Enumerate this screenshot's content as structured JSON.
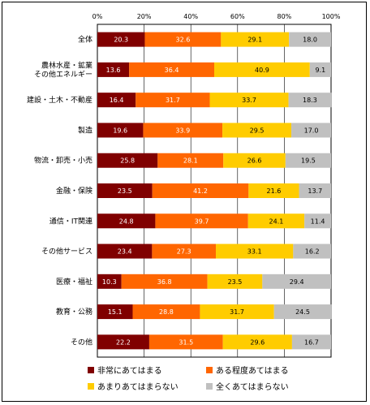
{
  "chart_data": {
    "type": "bar",
    "orientation": "horizontal",
    "stacked": true,
    "percent": true,
    "xlim": [
      0,
      100
    ],
    "xticks": [
      "0%",
      "20%",
      "40%",
      "60%",
      "80%",
      "100%"
    ],
    "categories": [
      "全体",
      "農林水産・鉱業\nその他エネルギー",
      "建設・土木・不動産",
      "製造",
      "物流・卸売・小売",
      "金融・保険",
      "通信・IT関連",
      "その他サービス",
      "医療・福祉",
      "教育・公務",
      "その他"
    ],
    "series": [
      {
        "name": "非常にあてはまる",
        "color": "#800000",
        "label_color": "#ffffff",
        "values": [
          20.3,
          13.6,
          16.4,
          19.6,
          25.8,
          23.5,
          24.8,
          23.4,
          10.3,
          15.1,
          22.2
        ]
      },
      {
        "name": "ある程度あてはまる",
        "color": "#ff6600",
        "label_color": "#ffffff",
        "values": [
          32.6,
          36.4,
          31.7,
          33.9,
          28.1,
          41.2,
          39.7,
          27.3,
          36.8,
          28.8,
          31.5
        ]
      },
      {
        "name": "あまりあてはまらない",
        "color": "#ffcc00",
        "label_color": "#000000",
        "values": [
          29.1,
          40.9,
          33.7,
          29.5,
          26.6,
          21.6,
          24.1,
          33.1,
          23.5,
          31.7,
          29.6
        ]
      },
      {
        "name": "全くあてはまらない",
        "color": "#c0c0c0",
        "label_color": "#000000",
        "values": [
          18.0,
          9.1,
          18.3,
          17.0,
          19.5,
          13.7,
          11.4,
          16.2,
          29.4,
          24.5,
          16.7
        ]
      }
    ],
    "grid": true,
    "legend_position": "bottom"
  }
}
